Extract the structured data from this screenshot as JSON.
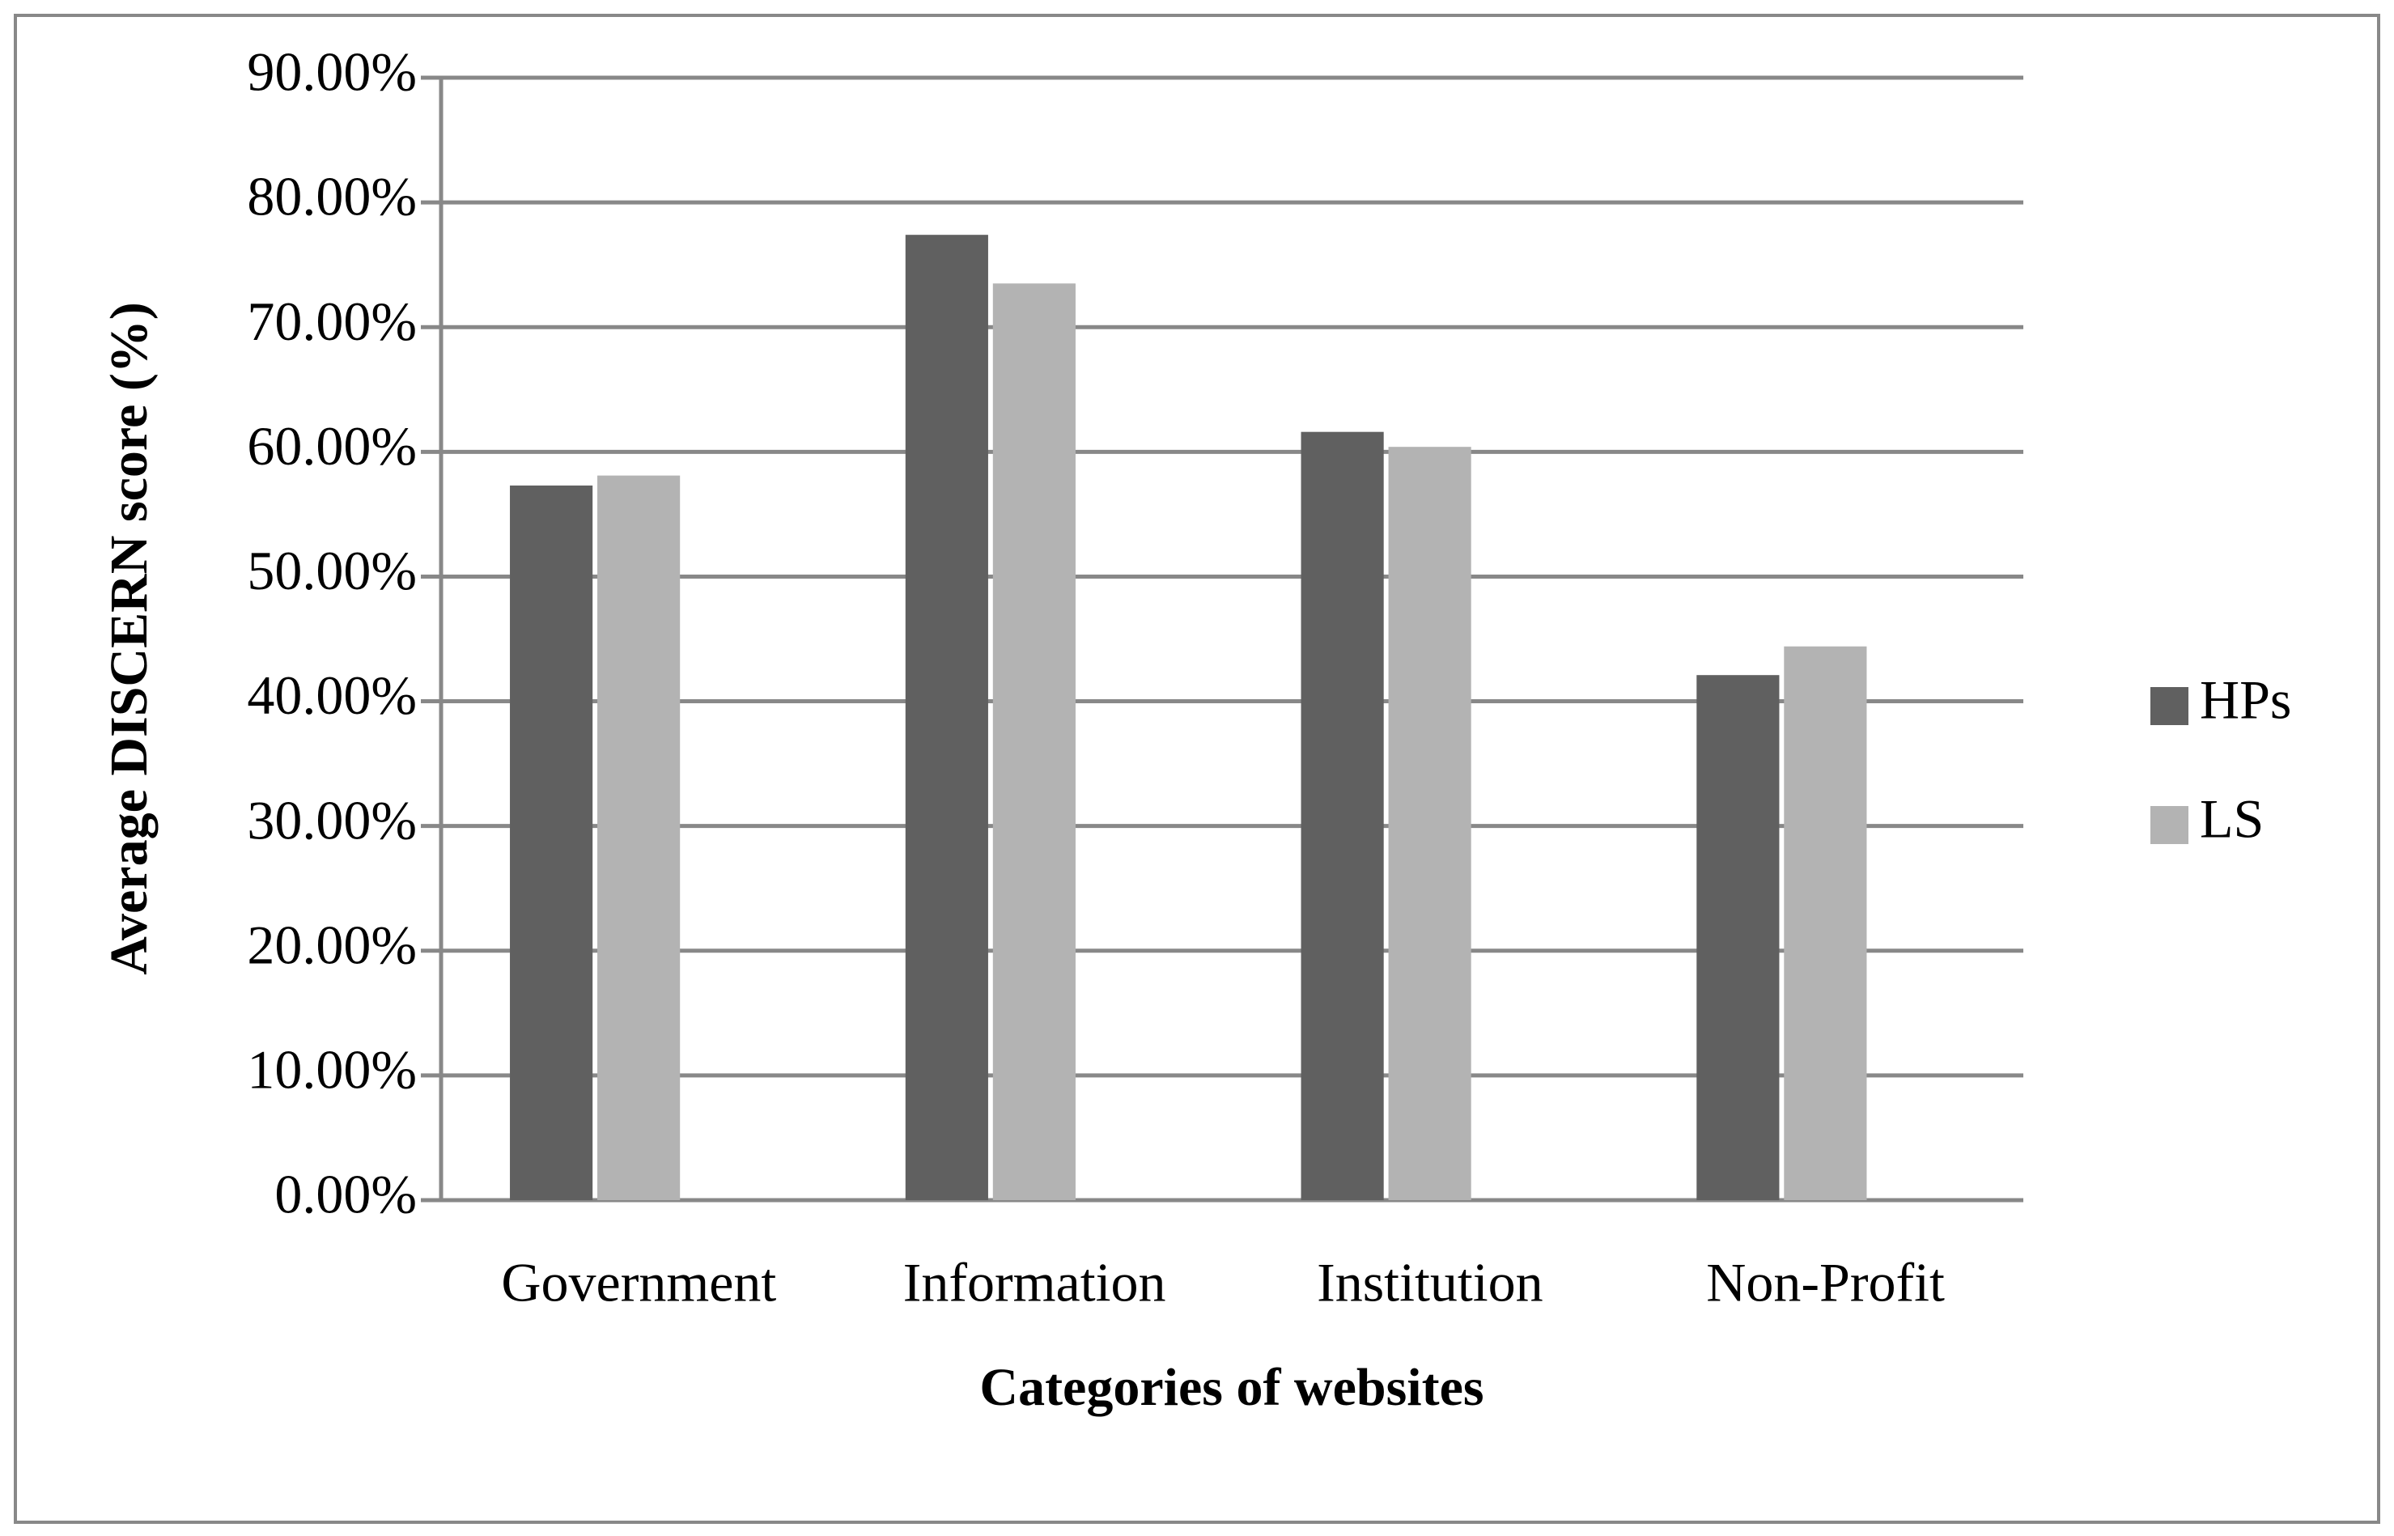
{
  "chart_data": {
    "type": "bar",
    "x_label": "Categories of websites",
    "y_label": "Average DISCERN score (%)",
    "categories": [
      "Government",
      "Information",
      "Institution",
      "Non-Profit"
    ],
    "series": [
      {
        "name": "HPs",
        "color": "#606060",
        "values": [
          57.3,
          77.4,
          61.6,
          42.1
        ]
      },
      {
        "name": "LS",
        "color": "#b3b3b3",
        "values": [
          58.1,
          73.5,
          60.4,
          44.4
        ]
      }
    ],
    "ylim": [
      0,
      90
    ],
    "yticks": [
      {
        "value": 0,
        "label": "0.00%"
      },
      {
        "value": 10,
        "label": "10.00%"
      },
      {
        "value": 20,
        "label": "20.00%"
      },
      {
        "value": 30,
        "label": "30.00%"
      },
      {
        "value": 40,
        "label": "40.00%"
      },
      {
        "value": 50,
        "label": "50.00%"
      },
      {
        "value": 60,
        "label": "60.00%"
      },
      {
        "value": 70,
        "label": "70.00%"
      },
      {
        "value": 80,
        "label": "80.00%"
      },
      {
        "value": 90,
        "label": "90.00%"
      }
    ],
    "grid": true,
    "legend": "right"
  }
}
